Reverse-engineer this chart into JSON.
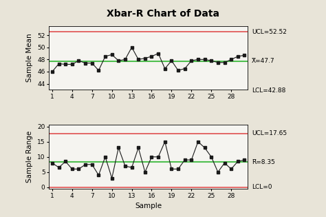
{
  "title": "Xbar-R Chart of Data",
  "xbar_data": [
    46,
    47.3,
    47.2,
    47.2,
    47.8,
    47.4,
    47.4,
    46.2,
    48.5,
    48.8,
    47.8,
    48,
    50,
    48,
    48.2,
    48.5,
    49,
    46.5,
    47.8,
    46.2,
    46.5,
    47.8,
    48,
    48,
    47.8,
    47.5,
    47.5,
    48,
    48.5,
    48.7
  ],
  "r_data": [
    8,
    6.5,
    8.5,
    6,
    6,
    7.5,
    7.5,
    4,
    10,
    3,
    13,
    7,
    6.5,
    13,
    5,
    10,
    10,
    15,
    6,
    6,
    9,
    9,
    15,
    13,
    10,
    5,
    8,
    6,
    8.5,
    9
  ],
  "xbar_ucl": 52.52,
  "xbar_cl": 47.7,
  "xbar_lcl": 42.88,
  "r_ucl": 17.65,
  "r_cl": 8.35,
  "r_lcl": 0,
  "xbar_ylim": [
    43,
    53.5
  ],
  "r_ylim": [
    -0.5,
    20.5
  ],
  "xbar_yticks": [
    44,
    46,
    48,
    50,
    52
  ],
  "r_yticks": [
    0,
    5,
    10,
    15,
    20
  ],
  "bg_color": "#e8e4d8",
  "plot_bg_color": "#f5f4f0",
  "ucl_color": "#e05050",
  "cl_color": "#50c050",
  "line_color": "#1a1a1a",
  "marker_color": "#1a1a1a",
  "xlabel": "Sample",
  "xbar_ylabel": "Sample Mean",
  "r_ylabel": "Sample Range",
  "xticks": [
    1,
    4,
    7,
    10,
    13,
    16,
    19,
    22,
    25,
    28
  ],
  "annotation_fontsize": 6.5,
  "label_fontsize": 7.5,
  "title_fontsize": 10
}
